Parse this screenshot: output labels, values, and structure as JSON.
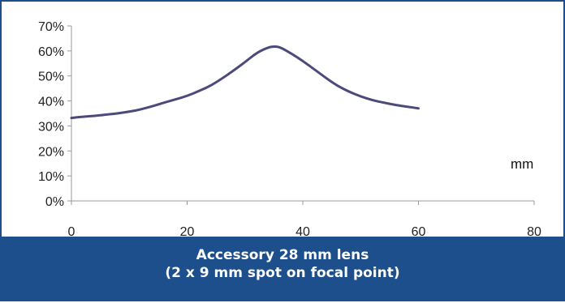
{
  "chart_data": {
    "type": "line",
    "title": "",
    "xlabel": "mm",
    "ylabel": "",
    "xlim": [
      0,
      80
    ],
    "ylim": [
      0,
      70
    ],
    "x_ticks": [
      "0",
      "20",
      "40",
      "60",
      "80"
    ],
    "y_ticks": [
      "0%",
      "10%",
      "20%",
      "30%",
      "40%",
      "50%",
      "60%",
      "70%"
    ],
    "grid": false,
    "legend": "none",
    "series": [
      {
        "color": "#4b4a7a",
        "x": [
          0,
          2,
          4,
          6,
          8,
          10,
          12,
          14,
          16,
          18,
          20,
          22,
          24,
          26,
          28,
          30,
          32,
          34,
          35,
          36,
          38,
          40,
          42,
          44,
          46,
          48,
          50,
          52,
          54,
          56,
          58,
          60
        ],
        "y": [
          33.2,
          33.7,
          34.0,
          34.5,
          35.0,
          35.7,
          36.6,
          37.9,
          39.3,
          40.6,
          42.0,
          43.9,
          46.0,
          48.9,
          52.1,
          55.5,
          59.2,
          61.4,
          61.8,
          61.6,
          59.0,
          56.0,
          52.6,
          49.2,
          46.0,
          43.7,
          41.8,
          40.3,
          39.3,
          38.4,
          37.7,
          37.0
        ]
      }
    ]
  },
  "caption": {
    "line1": "Accessory 28 mm lens",
    "line2": "(2 x 9 mm spot on focal point)"
  }
}
